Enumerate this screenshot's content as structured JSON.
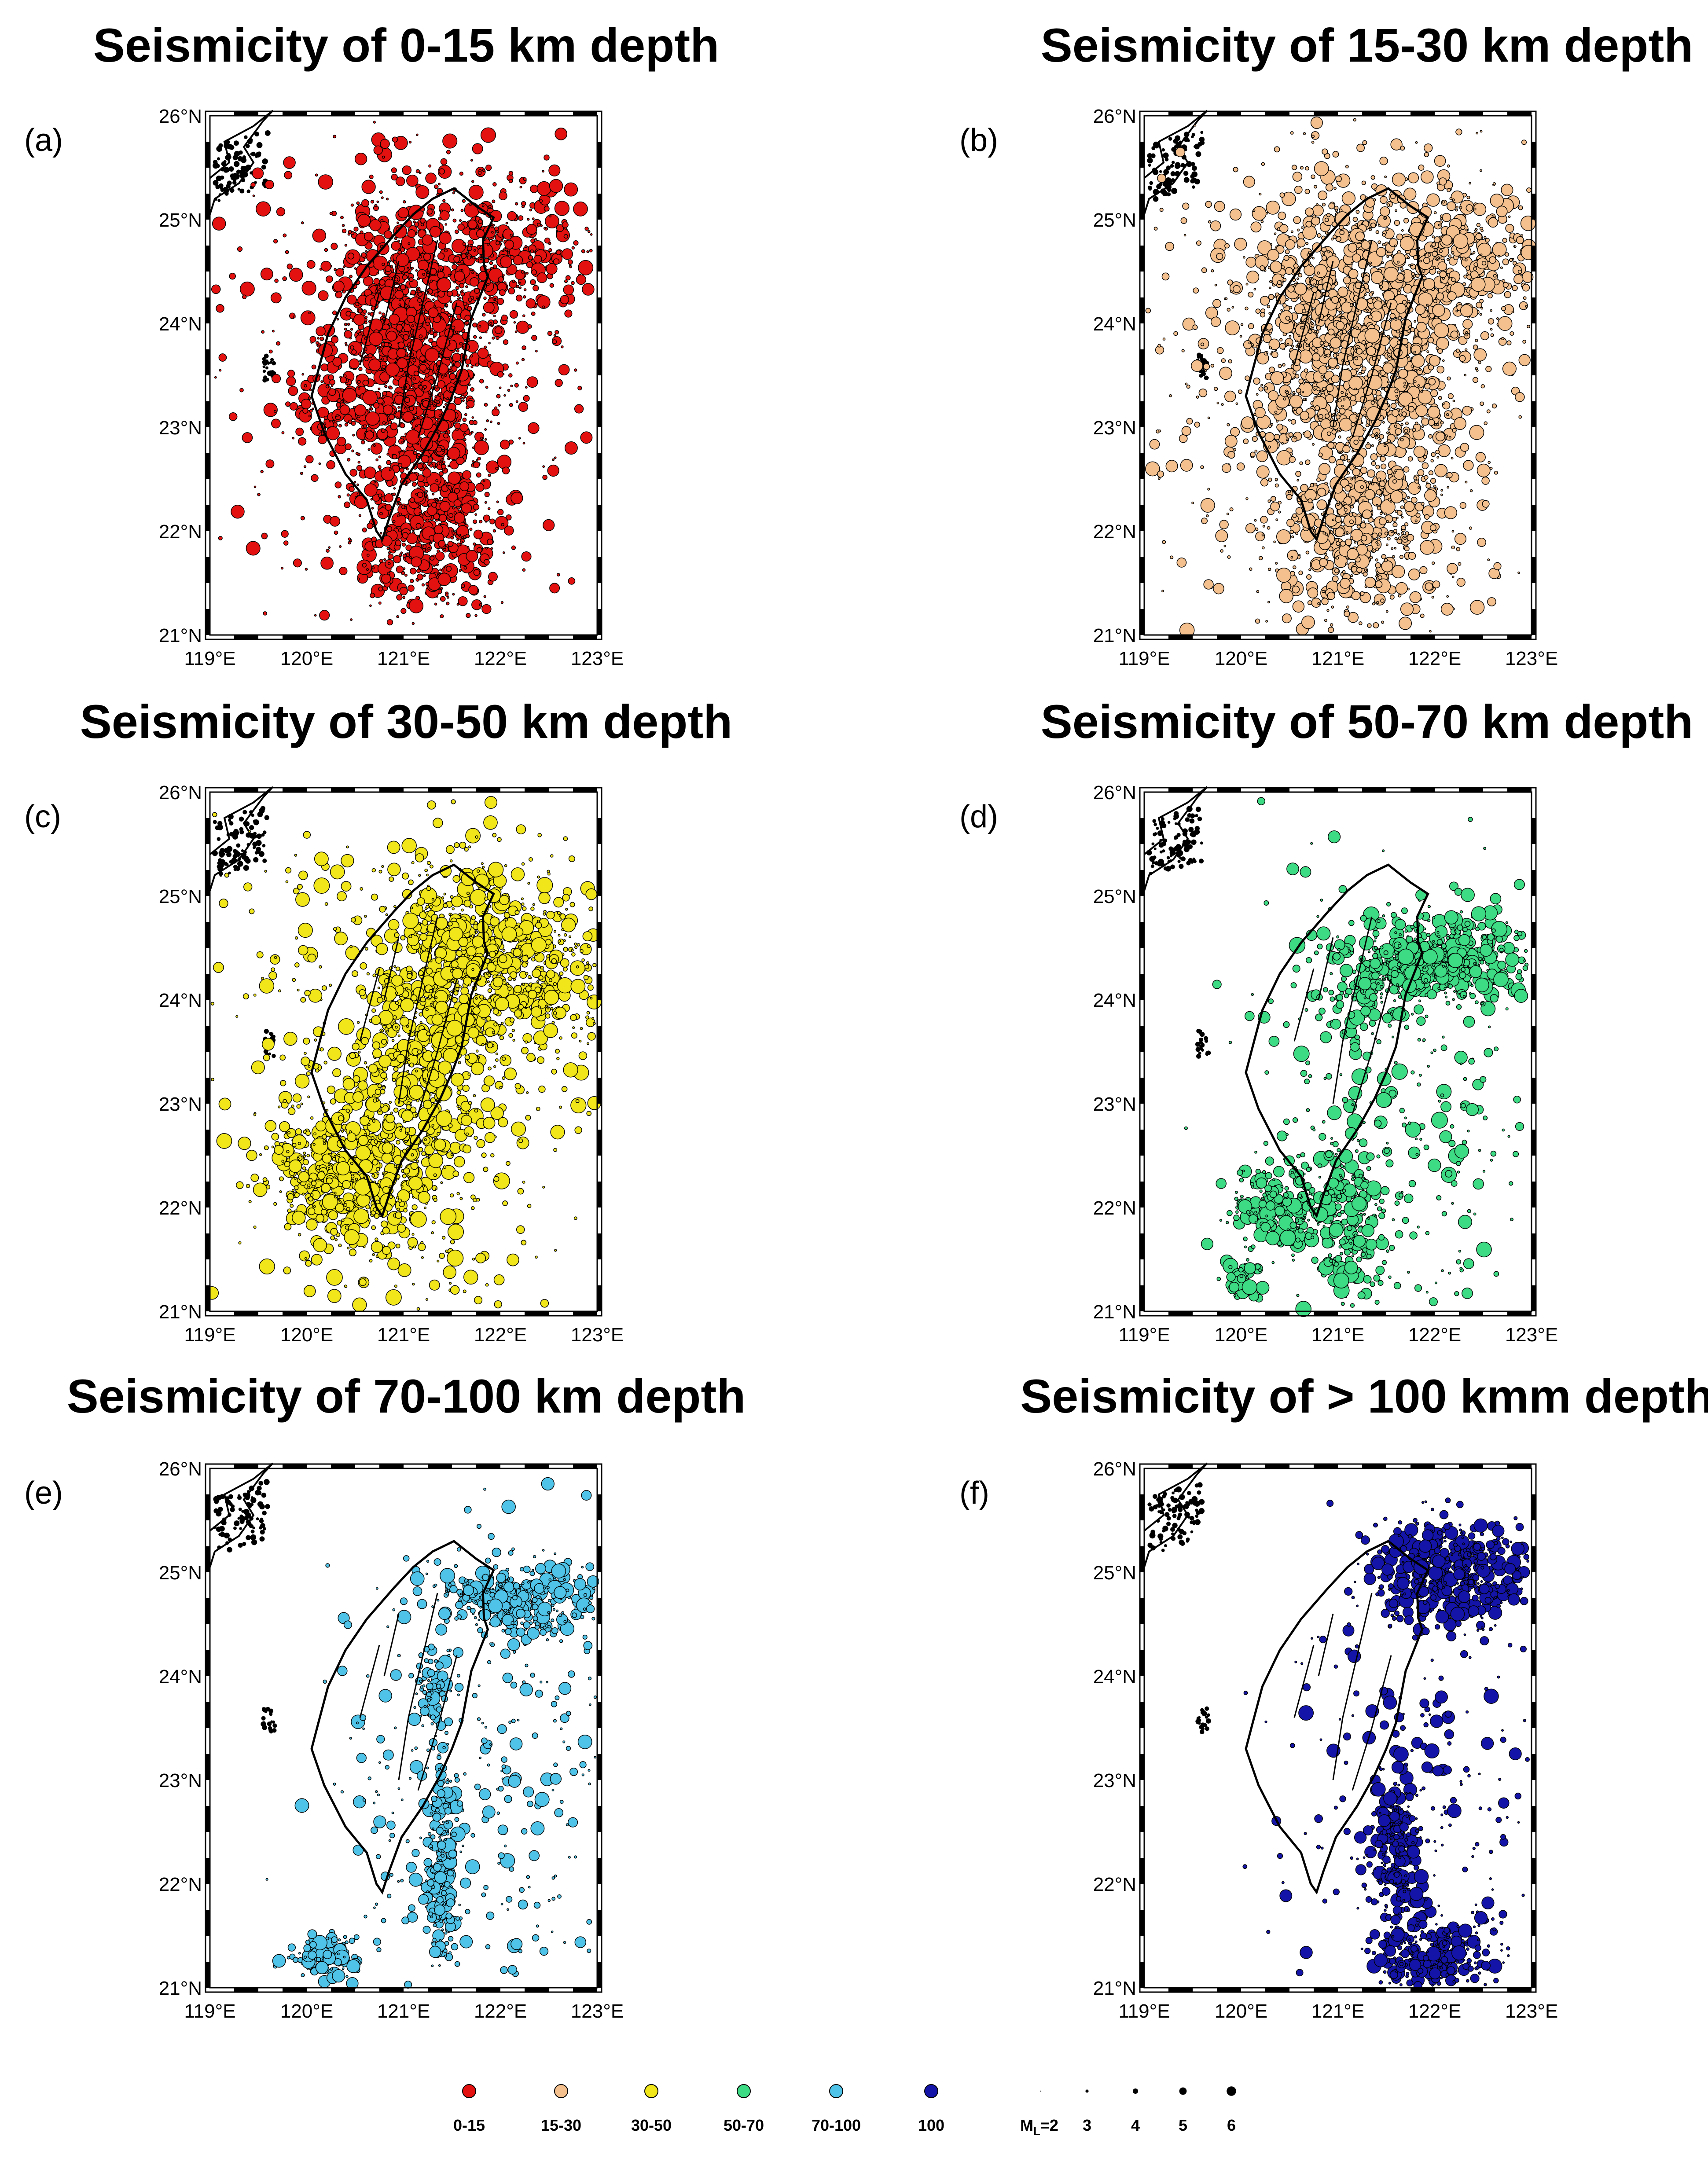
{
  "figure": {
    "panels": [
      {
        "id": "a",
        "label": "(a)",
        "title": "Seismicity of 0-15 km depth",
        "color": "#e3110f",
        "count": 2600,
        "size_scale": 1.0,
        "clusters": [
          {
            "c": [
              121.0,
              24.0
            ],
            "s": [
              0.4,
              0.7
            ],
            "w": 0.3
          },
          {
            "c": [
              121.3,
              23.3
            ],
            "s": [
              0.35,
              0.6
            ],
            "w": 0.2
          },
          {
            "c": [
              122.0,
              24.6
            ],
            "s": [
              0.5,
              0.35
            ],
            "w": 0.15
          },
          {
            "c": [
              121.3,
              22.0
            ],
            "s": [
              0.35,
              0.4
            ],
            "w": 0.15
          },
          {
            "c": [
              120.3,
              23.2
            ],
            "s": [
              0.3,
              0.25
            ],
            "w": 0.05
          },
          {
            "c": [
              121.0,
              23.5
            ],
            "s": [
              1.2,
              1.4
            ],
            "w": 0.15
          }
        ]
      },
      {
        "id": "b",
        "label": "(b)",
        "title": "Seismicity of 15-30 km depth",
        "color": "#f4c08e",
        "count": 2800,
        "size_scale": 1.0,
        "clusters": [
          {
            "c": [
              120.9,
              24.0
            ],
            "s": [
              0.45,
              0.7
            ],
            "w": 0.3
          },
          {
            "c": [
              121.6,
              23.5
            ],
            "s": [
              0.4,
              0.7
            ],
            "w": 0.2
          },
          {
            "c": [
              122.3,
              24.6
            ],
            "s": [
              0.55,
              0.4
            ],
            "w": 0.15
          },
          {
            "c": [
              121.2,
              22.0
            ],
            "s": [
              0.45,
              0.45
            ],
            "w": 0.15
          },
          {
            "c": [
              121.0,
              23.3
            ],
            "s": [
              1.1,
              1.3
            ],
            "w": 0.2
          }
        ]
      },
      {
        "id": "c",
        "label": "(c)",
        "title": "Seismicity of 30-50 km depth",
        "color": "#f0e61a",
        "count": 2300,
        "size_scale": 1.1,
        "clusters": [
          {
            "c": [
              121.6,
              24.3
            ],
            "s": [
              0.4,
              0.5
            ],
            "w": 0.25
          },
          {
            "c": [
              122.3,
              24.4
            ],
            "s": [
              0.45,
              0.4
            ],
            "w": 0.15
          },
          {
            "c": [
              120.4,
              22.3
            ],
            "s": [
              0.4,
              0.35
            ],
            "w": 0.2
          },
          {
            "c": [
              121.1,
              23.2
            ],
            "s": [
              0.35,
              0.6
            ],
            "w": 0.15
          },
          {
            "c": [
              121.0,
              23.2
            ],
            "s": [
              1.1,
              1.3
            ],
            "w": 0.25
          }
        ]
      },
      {
        "id": "d",
        "label": "(d)",
        "title": "Seismicity of 50-70 km depth",
        "color": "#3ddc84",
        "count": 1400,
        "size_scale": 1.1,
        "clusters": [
          {
            "c": [
              122.1,
              24.4
            ],
            "s": [
              0.5,
              0.2
            ],
            "w": 0.35
          },
          {
            "c": [
              121.3,
              24.1
            ],
            "s": [
              0.25,
              0.2
            ],
            "w": 0.08
          },
          {
            "c": [
              120.4,
              22.0
            ],
            "s": [
              0.25,
              0.2
            ],
            "w": 0.15
          },
          {
            "c": [
              121.1,
              21.9
            ],
            "s": [
              0.2,
              0.45
            ],
            "w": 0.15
          },
          {
            "c": [
              120.0,
              21.3
            ],
            "s": [
              0.1,
              0.1
            ],
            "w": 0.04
          },
          {
            "c": [
              121.8,
              23.2
            ],
            "s": [
              1.0,
              1.3
            ],
            "w": 0.23
          }
        ]
      },
      {
        "id": "e",
        "label": "(e)",
        "title": "Seismicity of 70-100 km depth",
        "color": "#4fc3e8",
        "count": 1100,
        "size_scale": 1.0,
        "clusters": [
          {
            "c": [
              122.2,
              24.75
            ],
            "s": [
              0.5,
              0.18
            ],
            "w": 0.35
          },
          {
            "c": [
              121.4,
              22.1
            ],
            "s": [
              0.08,
              0.5
            ],
            "w": 0.2
          },
          {
            "c": [
              120.2,
              21.3
            ],
            "s": [
              0.18,
              0.12
            ],
            "w": 0.08
          },
          {
            "c": [
              121.3,
              23.9
            ],
            "s": [
              0.1,
              0.2
            ],
            "w": 0.06
          },
          {
            "c": [
              121.8,
              22.8
            ],
            "s": [
              0.9,
              1.2
            ],
            "w": 0.31
          }
        ]
      },
      {
        "id": "f",
        "label": "(f)",
        "title": "Seismicity of > 100 kmm depth",
        "color": "#1414a8",
        "count": 1300,
        "size_scale": 1.0,
        "clusters": [
          {
            "c": [
              122.2,
              25.0
            ],
            "s": [
              0.45,
              0.25
            ],
            "w": 0.4
          },
          {
            "c": [
              121.6,
              22.3
            ],
            "s": [
              0.12,
              0.4
            ],
            "w": 0.2
          },
          {
            "c": [
              122.0,
              21.3
            ],
            "s": [
              0.3,
              0.18
            ],
            "w": 0.2
          },
          {
            "c": [
              121.9,
              23.2
            ],
            "s": [
              0.8,
              1.2
            ],
            "w": 0.2
          }
        ]
      }
    ],
    "x_ticks": [
      "119°E",
      "120°E",
      "121°E",
      "122°E",
      "123°E"
    ],
    "y_ticks": [
      "21°N",
      "22°N",
      "23°N",
      "24°N",
      "25°N",
      "26°N"
    ],
    "lon_range": [
      119,
      123
    ],
    "lat_range": [
      21,
      26
    ]
  },
  "legend": {
    "depth": [
      {
        "label": "0-15",
        "color": "#e3110f"
      },
      {
        "label": "15-30",
        "color": "#f4c08e"
      },
      {
        "label": "30-50",
        "color": "#f0e61a"
      },
      {
        "label": "50-70",
        "color": "#3ddc84"
      },
      {
        "label": "70-100",
        "color": "#4fc3e8"
      },
      {
        "label": "100",
        "color": "#1414a8"
      }
    ],
    "magnitude_prefix": "M",
    "magnitude_subscript": "L",
    "magnitude": [
      {
        "label": "=2",
        "mag": 2
      },
      {
        "label": "3",
        "mag": 3
      },
      {
        "label": "4",
        "mag": 4
      },
      {
        "label": "5",
        "mag": 5
      },
      {
        "label": "6",
        "mag": 6
      }
    ]
  }
}
